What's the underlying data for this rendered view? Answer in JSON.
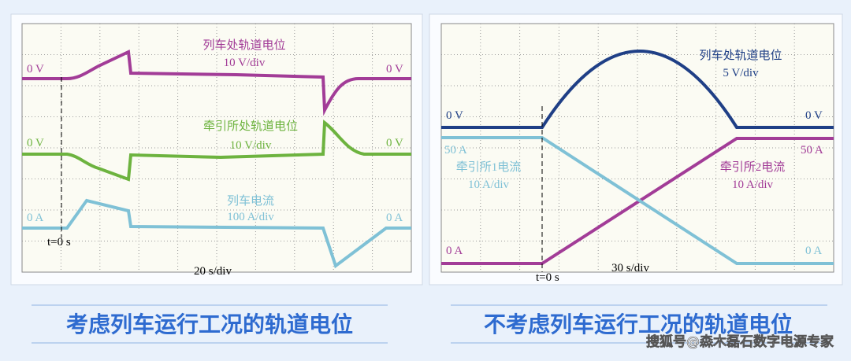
{
  "panels": [
    {
      "trace_labels": [
        "列车处轨道电位",
        "10 V/div",
        "牵引所处轨道电位",
        "10 V/div",
        "列车电流",
        "100 A/div"
      ],
      "levels": [
        "0 V",
        "0 V",
        "0 V",
        "0 V",
        "0 A",
        "0 A"
      ],
      "time_marker": "t=0 s",
      "timebase": "20 s/div",
      "caption": "考虑列车运行工况的轨道电位"
    },
    {
      "trace_labels": [
        "列车处轨道电位",
        "5 V/div",
        "牵引所1电流",
        "10 A/div",
        "牵引所2电流",
        "10 A/div"
      ],
      "levels": [
        "0 V",
        "0 V",
        "50 A",
        "50 A",
        "0 A",
        "0 A"
      ],
      "time_marker": "t=0 s",
      "timebase": "30 s/div",
      "caption": "不考虑列车运行工况的轨道电位"
    }
  ],
  "watermark": "搜狐号@森木磊石数字电源专家"
}
